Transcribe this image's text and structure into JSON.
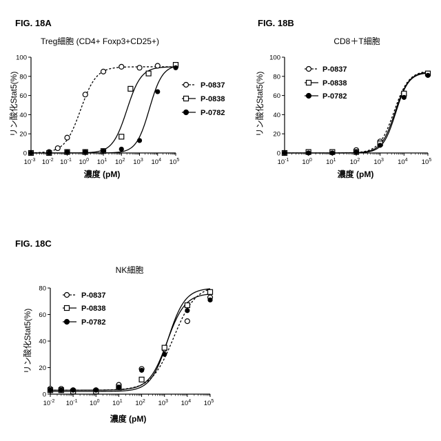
{
  "chart_data": [
    {
      "type": "scatter",
      "panel_label": "FIG. 18A",
      "title": "Treg細胞 (CD4+ Foxp3+CD25+)",
      "xlabel": "濃度 (pM)",
      "ylabel": "リン酸化Stat5(%)",
      "x_scale": "log",
      "xlim": [
        0.001,
        100000
      ],
      "xticks": [
        {
          "base": "10",
          "exp": "-3"
        },
        {
          "base": "10",
          "exp": "-2"
        },
        {
          "base": "10",
          "exp": "-1"
        },
        {
          "base": "10",
          "exp": "0"
        },
        {
          "base": "10",
          "exp": "1"
        },
        {
          "base": "10",
          "exp": "2"
        },
        {
          "base": "10",
          "exp": "3"
        },
        {
          "base": "10",
          "exp": "4"
        },
        {
          "base": "10",
          "exp": "5"
        }
      ],
      "ylim": [
        0,
        100
      ],
      "yticks": [
        "0",
        "20",
        "40",
        "60",
        "80",
        "100"
      ],
      "legend_position": "right",
      "series": [
        {
          "name": "P-0837",
          "marker": "open-circle",
          "line": "dashed",
          "x": [
            0.001,
            0.01,
            0.03,
            0.1,
            1,
            10,
            100,
            1000,
            10000,
            100000
          ],
          "y": [
            0,
            1,
            5,
            16,
            61,
            85,
            90,
            89,
            91,
            91
          ],
          "fit": {
            "bottom": 0,
            "top": 90,
            "ec50": 0.55,
            "hill": 1.0
          }
        },
        {
          "name": "P-0838",
          "marker": "open-square",
          "line": "solid",
          "x": [
            0.001,
            0.01,
            0.1,
            1,
            10,
            100,
            316,
            3160,
            100000
          ],
          "y": [
            0,
            0,
            1,
            1,
            2,
            17,
            67,
            83,
            92
          ],
          "fit": {
            "bottom": 0,
            "top": 90,
            "ec50": 200,
            "hill": 1.1
          }
        },
        {
          "name": "P-0782",
          "marker": "filled-circle",
          "line": "solid",
          "x": [
            0.001,
            0.01,
            0.1,
            1,
            10,
            100,
            1000,
            10000,
            100000
          ],
          "y": [
            0,
            0,
            1,
            1,
            2,
            4,
            13,
            64,
            89
          ],
          "fit": {
            "bottom": 0,
            "top": 92,
            "ec50": 3500,
            "hill": 1.2
          }
        }
      ]
    },
    {
      "type": "scatter",
      "panel_label": "FIG. 18B",
      "title": "CD8＋T細胞",
      "xlabel": "濃度 (pM)",
      "ylabel": "リン酸化Stat5(%)",
      "x_scale": "log",
      "xlim": [
        0.1,
        100000
      ],
      "xticks": [
        {
          "base": "10",
          "exp": "-1"
        },
        {
          "base": "10",
          "exp": "0"
        },
        {
          "base": "10",
          "exp": "1"
        },
        {
          "base": "10",
          "exp": "2"
        },
        {
          "base": "10",
          "exp": "3"
        },
        {
          "base": "10",
          "exp": "4"
        },
        {
          "base": "10",
          "exp": "5"
        }
      ],
      "ylim": [
        0,
        100
      ],
      "yticks": [
        "0",
        "20",
        "40",
        "60",
        "80",
        "100"
      ],
      "legend_position": "top-left",
      "series": [
        {
          "name": "P-0837",
          "marker": "open-circle",
          "line": "dashed",
          "x": [
            0.1,
            1,
            10,
            100,
            1000,
            10000,
            100000
          ],
          "y": [
            0,
            1,
            1,
            3,
            12,
            60,
            82
          ],
          "fit": {
            "bottom": 0,
            "top": 86,
            "ec50": 3800,
            "hill": 1.4
          }
        },
        {
          "name": "P-0838",
          "marker": "open-square",
          "line": "solid",
          "x": [
            0.1,
            1,
            10,
            100,
            1000,
            10000,
            100000
          ],
          "y": [
            0,
            1,
            1,
            1,
            10,
            62,
            83
          ],
          "fit": {
            "bottom": 0,
            "top": 85,
            "ec50": 4200,
            "hill": 1.5
          }
        },
        {
          "name": "P-0782",
          "marker": "filled-circle",
          "line": "solid",
          "x": [
            0.1,
            1,
            10,
            100,
            1000,
            10000,
            100000
          ],
          "y": [
            0,
            0,
            0,
            1,
            8,
            58,
            81
          ],
          "fit": {
            "bottom": 0,
            "top": 84,
            "ec50": 4500,
            "hill": 1.6
          }
        }
      ]
    },
    {
      "type": "scatter",
      "panel_label": "FIG. 18C",
      "title": "NK細胞",
      "xlabel": "濃度 (pM)",
      "ylabel": "リン酸化Stat5(%)",
      "x_scale": "log",
      "xlim": [
        0.01,
        100000
      ],
      "xticks": [
        {
          "base": "10",
          "exp": "-2"
        },
        {
          "base": "10",
          "exp": "-1"
        },
        {
          "base": "10",
          "exp": "0"
        },
        {
          "base": "10",
          "exp": "1"
        },
        {
          "base": "10",
          "exp": "2"
        },
        {
          "base": "10",
          "exp": "3"
        },
        {
          "base": "10",
          "exp": "4"
        },
        {
          "base": "10",
          "exp": "5"
        }
      ],
      "ylim": [
        0,
        80
      ],
      "yticks": [
        "0",
        "20",
        "40",
        "60",
        "80"
      ],
      "legend_position": "top-left",
      "series": [
        {
          "name": "P-0837",
          "marker": "open-circle",
          "line": "dashed",
          "x": [
            0.01,
            0.03,
            0.1,
            1,
            10,
            100,
            1000,
            10000,
            100000
          ],
          "y": [
            4,
            4,
            3,
            3,
            7,
            19,
            34,
            55,
            73
          ],
          "fit": {
            "bottom": 3,
            "top": 82,
            "ec50": 2500,
            "hill": 0.9
          }
        },
        {
          "name": "P-0838",
          "marker": "open-square",
          "line": "solid",
          "x": [
            0.01,
            0.03,
            0.1,
            1,
            10,
            100,
            1000,
            10000,
            100000
          ],
          "y": [
            3,
            3,
            2,
            2,
            5,
            11,
            35,
            67,
            77
          ],
          "fit": {
            "bottom": 2,
            "top": 80,
            "ec50": 1400,
            "hill": 1.15
          }
        },
        {
          "name": "P-0782",
          "marker": "filled-circle",
          "line": "solid",
          "x": [
            0.01,
            0.03,
            0.1,
            1,
            10,
            100,
            1000,
            10000,
            100000
          ],
          "y": [
            3,
            3,
            3,
            3,
            5,
            18,
            30,
            63,
            71
          ],
          "fit": {
            "bottom": 3,
            "top": 76,
            "ec50": 1300,
            "hill": 1.1
          }
        }
      ]
    }
  ]
}
